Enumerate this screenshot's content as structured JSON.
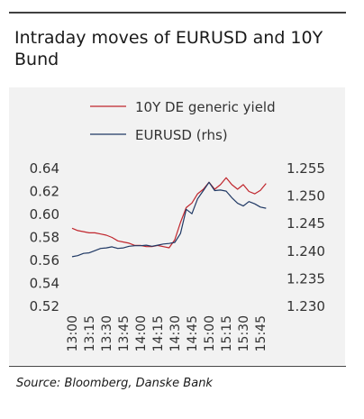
{
  "header": {
    "title": "Intraday moves of EURUSD and 10Y Bund"
  },
  "footer": {
    "source": "Source: Bloomberg, Danske Bank"
  },
  "colors": {
    "yield": "#c0262d",
    "eurusd": "#1f3864",
    "background": "#f2f2f2"
  },
  "chart_data": {
    "type": "line",
    "title": "Intraday moves of EURUSD and 10Y Bund",
    "legend_position": "top",
    "grid": false,
    "x_ticks": [
      "13:00",
      "13:15",
      "13:30",
      "13:45",
      "14:00",
      "14:15",
      "14:30",
      "14:45",
      "15:00",
      "15:15",
      "15:30",
      "15:45"
    ],
    "y_left": {
      "ylim": [
        0.52,
        0.64
      ],
      "ticks": [
        "0.64",
        "0.62",
        "0.60",
        "0.58",
        "0.56",
        "0.54",
        "0.52"
      ]
    },
    "y_right": {
      "ylim": [
        1.23,
        1.255
      ],
      "ticks": [
        "1.255",
        "1.250",
        "1.245",
        "1.240",
        "1.235",
        "1.230"
      ]
    },
    "series": [
      {
        "name": "10Y DE generic yield",
        "axis": "left",
        "x": [
          "13:00",
          "13:05",
          "13:10",
          "13:15",
          "13:20",
          "13:25",
          "13:30",
          "13:35",
          "13:40",
          "13:45",
          "13:50",
          "13:55",
          "14:00",
          "14:05",
          "14:10",
          "14:15",
          "14:20",
          "14:25",
          "14:30",
          "14:35",
          "14:40",
          "14:45",
          "14:50",
          "14:55",
          "15:00",
          "15:05",
          "15:10",
          "15:15",
          "15:20",
          "15:25",
          "15:30",
          "15:35",
          "15:40",
          "15:45",
          "15:50"
        ],
        "values": [
          0.588,
          0.586,
          0.585,
          0.584,
          0.584,
          0.583,
          0.582,
          0.58,
          0.577,
          0.576,
          0.575,
          0.573,
          0.573,
          0.572,
          0.572,
          0.573,
          0.572,
          0.571,
          0.578,
          0.593,
          0.606,
          0.61,
          0.618,
          0.622,
          0.628,
          0.622,
          0.626,
          0.632,
          0.626,
          0.622,
          0.626,
          0.62,
          0.618,
          0.621,
          0.627
        ]
      },
      {
        "name": "EURUSD (rhs)",
        "axis": "right",
        "x": [
          "13:00",
          "13:05",
          "13:10",
          "13:15",
          "13:20",
          "13:25",
          "13:30",
          "13:35",
          "13:40",
          "13:45",
          "13:50",
          "13:55",
          "14:00",
          "14:05",
          "14:10",
          "14:15",
          "14:20",
          "14:25",
          "14:30",
          "14:35",
          "14:40",
          "14:45",
          "14:50",
          "14:55",
          "15:00",
          "15:05",
          "15:10",
          "15:15",
          "15:20",
          "15:25",
          "15:30",
          "15:35",
          "15:40",
          "15:45",
          "15:50"
        ],
        "values": [
          1.239,
          1.2392,
          1.2396,
          1.2397,
          1.2401,
          1.2405,
          1.2406,
          1.2408,
          1.2405,
          1.2406,
          1.2409,
          1.241,
          1.241,
          1.2411,
          1.2409,
          1.2411,
          1.2413,
          1.2414,
          1.2416,
          1.2432,
          1.2476,
          1.2468,
          1.2495,
          1.251,
          1.2525,
          1.251,
          1.2511,
          1.2509,
          1.2497,
          1.2487,
          1.2482,
          1.249,
          1.2486,
          1.248,
          1.2478
        ]
      }
    ]
  }
}
